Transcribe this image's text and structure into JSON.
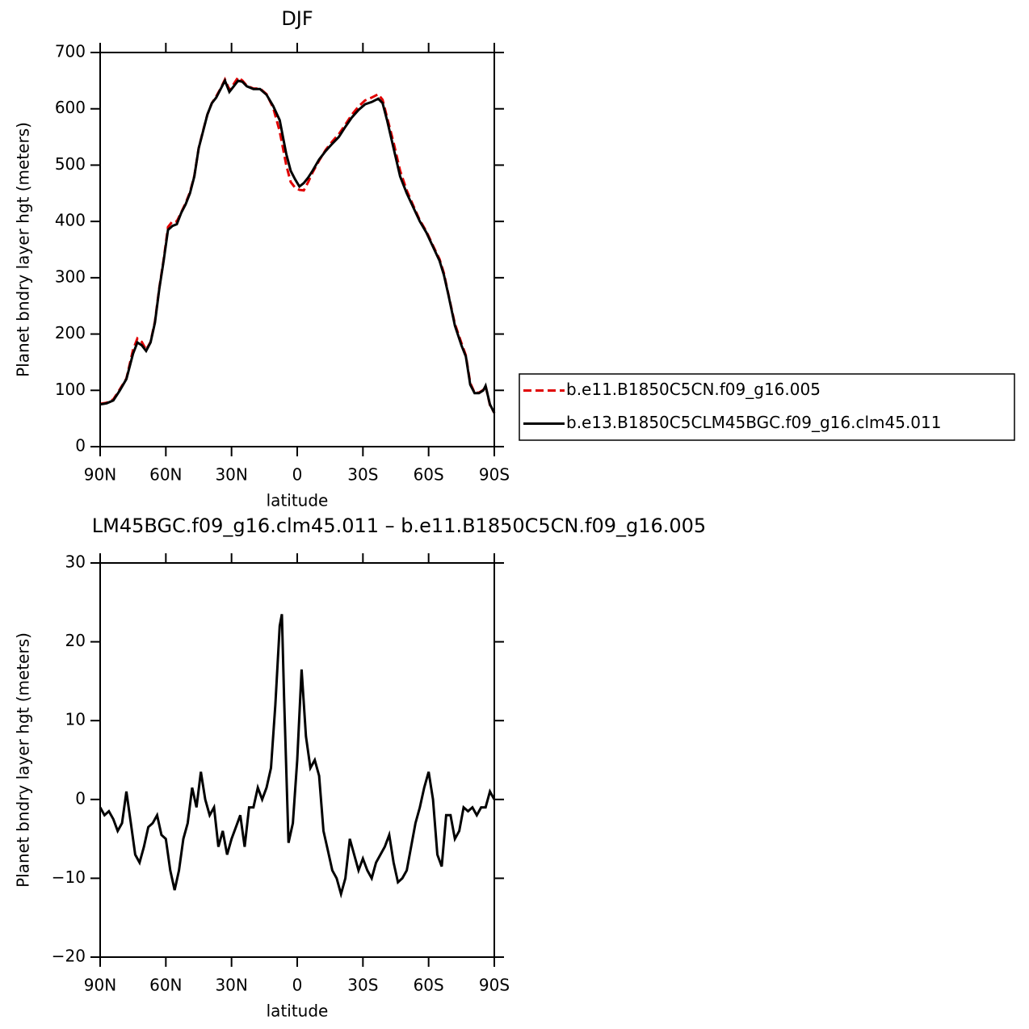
{
  "chart_data": [
    {
      "type": "line",
      "title": "DJF",
      "x_label": "latitude",
      "y_label": "Planet bndry layer hgt (meters)",
      "x": [
        90,
        87,
        84,
        81,
        78,
        75,
        73,
        71,
        69,
        67,
        65,
        63,
        61,
        59,
        57,
        55,
        53,
        51,
        49,
        47,
        45,
        43,
        41,
        39,
        37,
        35,
        33,
        31,
        29,
        27,
        25,
        23,
        20,
        17,
        14,
        11,
        8,
        5,
        3,
        1,
        -1,
        -3,
        -5,
        -7,
        -10,
        -13,
        -16,
        -19,
        -22,
        -25,
        -28,
        -31,
        -34,
        -37,
        -39,
        -41,
        -44,
        -47,
        -50,
        -53,
        -56,
        -59,
        -62,
        -65,
        -67,
        -69,
        -72,
        -75,
        -77,
        -79,
        -81,
        -83,
        -85,
        -86,
        -88,
        -90
      ],
      "series": [
        {
          "name": "b.e11.B1850C5CN.f09_g16.005",
          "color": "#e00000",
          "line_style": "dashed",
          "values": [
            76,
            78,
            84,
            102,
            121,
            172,
            192,
            186,
            172,
            186,
            222,
            282,
            332,
            390,
            400,
            400,
            416,
            432,
            452,
            481,
            530,
            561,
            590,
            610,
            622,
            636,
            652,
            634,
            644,
            656,
            650,
            641,
            636,
            636,
            626,
            602,
            560,
            500,
            470,
            460,
            456,
            455,
            470,
            487,
            508,
            527,
            542,
            555,
            572,
            590,
            604,
            615,
            620,
            626,
            616,
            585,
            540,
            490,
            455,
            428,
            402,
            382,
            357,
            333,
            308,
            271,
            218,
            184,
            162,
            113,
            96,
            96,
            101,
            108,
            74,
            60
          ]
        },
        {
          "name": "b.e13.B1850C5CLM45BGC.f09_g16.clm45.011",
          "color": "#000000",
          "line_style": "solid",
          "values": [
            75,
            77,
            82,
            100,
            120,
            165,
            185,
            180,
            170,
            185,
            220,
            280,
            330,
            385,
            392,
            395,
            415,
            430,
            450,
            480,
            530,
            560,
            590,
            610,
            620,
            635,
            650,
            630,
            640,
            650,
            648,
            640,
            635,
            635,
            625,
            605,
            580,
            520,
            490,
            475,
            462,
            468,
            478,
            490,
            510,
            525,
            538,
            550,
            568,
            585,
            598,
            608,
            612,
            618,
            610,
            580,
            530,
            480,
            450,
            425,
            400,
            380,
            355,
            330,
            305,
            270,
            215,
            180,
            160,
            110,
            95,
            95,
            100,
            108,
            75,
            60
          ]
        }
      ],
      "xlim": [
        90,
        -90
      ],
      "xticks": [
        {
          "value": 90,
          "label": "90N"
        },
        {
          "value": 60,
          "label": "60N"
        },
        {
          "value": 30,
          "label": "30N"
        },
        0,
        {
          "value": -30,
          "label": "30S"
        },
        {
          "value": -60,
          "label": "60S"
        },
        {
          "value": -90,
          "label": "90S"
        }
      ],
      "ylim": [
        0,
        700
      ],
      "yticks": [
        0,
        100,
        200,
        300,
        400,
        500,
        600,
        700
      ],
      "legend": "right"
    },
    {
      "type": "line",
      "title": "LM45BGC.f09_g16.clm45.011 – b.e11.B1850C5CN.f09_g16.005",
      "x_label": "latitude",
      "y_label": "Planet bndry layer hgt (meters)",
      "x": [
        90,
        88,
        86,
        84,
        82,
        80,
        78,
        76,
        74,
        72,
        70,
        68,
        66,
        64,
        62,
        60,
        58,
        56,
        54,
        52,
        50,
        48,
        46,
        44,
        42,
        40,
        38,
        36,
        34,
        32,
        30,
        28,
        26,
        24,
        22,
        20,
        18,
        16,
        14,
        12,
        10,
        8,
        7,
        6,
        4,
        2,
        0,
        -2,
        -4,
        -6,
        -8,
        -10,
        -12,
        -14,
        -16,
        -18,
        -20,
        -22,
        -24,
        -26,
        -28,
        -30,
        -32,
        -34,
        -36,
        -38,
        -40,
        -42,
        -44,
        -46,
        -48,
        -50,
        -52,
        -54,
        -56,
        -58,
        -60,
        -62,
        -64,
        -66,
        -68,
        -70,
        -72,
        -74,
        -76,
        -78,
        -80,
        -82,
        -84,
        -86,
        -88,
        -90
      ],
      "series": [
        {
          "color": "#000000",
          "line_style": "solid",
          "values": [
            -1,
            -2,
            -1.5,
            -2.5,
            -4,
            -3,
            1,
            -3,
            -7,
            -8,
            -6,
            -3.5,
            -3,
            -2,
            -4.5,
            -5,
            -9,
            -11.5,
            -9,
            -5,
            -3,
            1.5,
            -1,
            3.5,
            0,
            -2,
            -1,
            -6,
            -4,
            -7,
            -5,
            -3.5,
            -2,
            -6,
            -1,
            -1,
            1.5,
            0,
            1.5,
            4,
            12,
            22,
            23.5,
            13,
            -5.5,
            -3,
            5,
            16.5,
            8,
            4,
            5,
            3,
            -4,
            -6.5,
            -9,
            -10,
            -12,
            -10,
            -5,
            -7,
            -9,
            -7.5,
            -9,
            -10,
            -8,
            -7,
            -6,
            -4.5,
            -8,
            -10.5,
            -10,
            -9,
            -6,
            -3,
            -1,
            1.5,
            3.5,
            0,
            -7,
            -8.5,
            -2,
            -2,
            -5,
            -4,
            -1,
            -1.5,
            -1,
            -2,
            -1,
            -1,
            1,
            0
          ]
        }
      ],
      "xlim": [
        90,
        -90
      ],
      "xticks": [
        {
          "value": 90,
          "label": "90N"
        },
        {
          "value": 60,
          "label": "60N"
        },
        {
          "value": 30,
          "label": "30N"
        },
        0,
        {
          "value": -30,
          "label": "30S"
        },
        {
          "value": -60,
          "label": "60S"
        },
        {
          "value": -90,
          "label": "90S"
        }
      ],
      "ylim": [
        -20,
        30
      ],
      "yticks": [
        {
          "value": -20,
          "label": "−20"
        },
        {
          "value": -10,
          "label": "−10"
        },
        0,
        10,
        20,
        30
      ]
    }
  ]
}
